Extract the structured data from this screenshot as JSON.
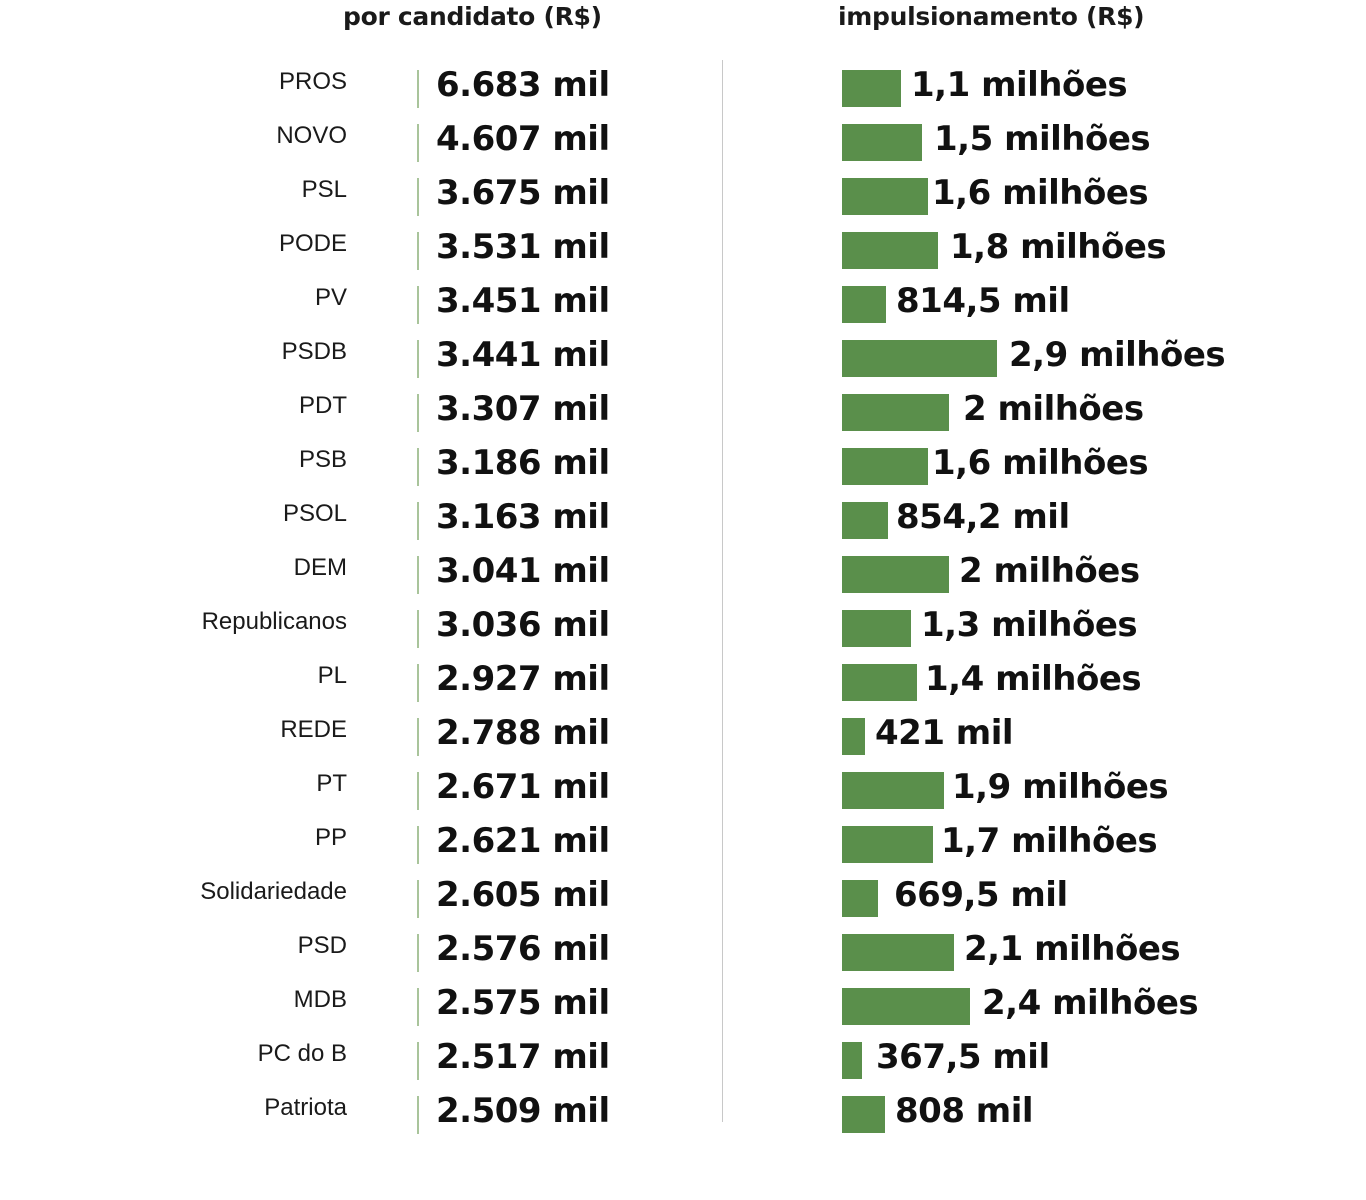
{
  "chart_data": {
    "type": "bar",
    "titles": {
      "left": "por candidato (R$)",
      "right": "impulsionamento (R$)"
    },
    "categories": [
      "PROS",
      "NOVO",
      "PSL",
      "PODE",
      "PV",
      "PSDB",
      "PDT",
      "PSB",
      "PSOL",
      "DEM",
      "Republicanos",
      "PL",
      "REDE",
      "PT",
      "PP",
      "Solidariedade",
      "PSD",
      "MDB",
      "PC do B",
      "Patriota"
    ],
    "series": [
      {
        "name": "por candidato (R$)",
        "values": [
          6683,
          4607,
          3675,
          3531,
          3451,
          3441,
          3307,
          3186,
          3163,
          3041,
          3036,
          2927,
          2788,
          2671,
          2621,
          2605,
          2576,
          2575,
          2517,
          2509
        ],
        "labels": [
          "6.683 mil",
          "4.607 mil",
          "3.675 mil",
          "3.531 mil",
          "3.451 mil",
          "3.441 mil",
          "3.307 mil",
          "3.186 mil",
          "3.163 mil",
          "3.041 mil",
          "3.036 mil",
          "2.927 mil",
          "2.788 mil",
          "2.671 mil",
          "2.621 mil",
          "2.605 mil",
          "2.576 mil",
          "2.575 mil",
          "2.517 mil",
          "2.509 mil"
        ]
      },
      {
        "name": "impulsionamento (R$)",
        "values": [
          1100000,
          1500000,
          1600000,
          1800000,
          814500,
          2900000,
          2000000,
          1600000,
          854200,
          2000000,
          1300000,
          1400000,
          421000,
          1900000,
          1700000,
          669500,
          2100000,
          2400000,
          367500,
          808000
        ],
        "labels": [
          "1,1 milhões",
          "1,5 milhões",
          "1,6 milhões",
          "1,8 milhões",
          "814,5 mil",
          "2,9 milhões",
          "2 milhões",
          "1,6 milhões",
          "854,2 mil",
          "2 milhões",
          "1,3 milhões",
          "1,4 milhões",
          "421 mil",
          "1,9 milhões",
          "1,7 milhões",
          "669,5 mil",
          "2,1 milhões",
          "2,4 milhões",
          "367,5 mil",
          "808 mil"
        ]
      }
    ],
    "colors": {
      "bar": "#5a8f4b",
      "tick": "#a9c49b",
      "separator": "#c8c8c8"
    },
    "xlabel": "",
    "ylabel": "",
    "grid": false,
    "legend": "none"
  }
}
